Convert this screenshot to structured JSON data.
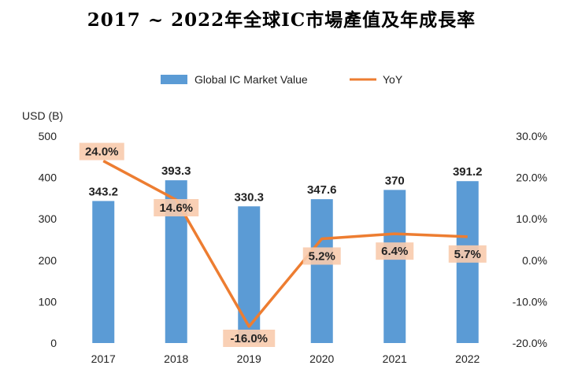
{
  "chart_data": {
    "type": "bar",
    "title": "2017 ~ 2022年全球IC市場產值及年成長率",
    "categories": [
      "2017",
      "2018",
      "2019",
      "2020",
      "2021",
      "2022"
    ],
    "series": [
      {
        "name": "Global IC Market Value",
        "type": "bar",
        "axis": "left",
        "values": [
          343.2,
          393.3,
          330.3,
          347.6,
          370,
          391.2
        ],
        "labels": [
          "343.2",
          "393.3",
          "330.3",
          "347.6",
          "370",
          "391.2"
        ],
        "color": "#5B9BD5"
      },
      {
        "name": "YoY",
        "type": "line",
        "axis": "right",
        "values": [
          24.0,
          14.6,
          -16.0,
          5.2,
          6.4,
          5.7
        ],
        "labels": [
          "24.0%",
          "14.6%",
          "-16.0%",
          "5.2%",
          "6.4%",
          "5.7%"
        ],
        "color": "#ED7D31",
        "label_bg": "#F8CBAD"
      }
    ],
    "left_axis": {
      "label": "USD (B)",
      "ylim": [
        0,
        500
      ],
      "ticks": [
        "0",
        "100",
        "200",
        "300",
        "400",
        "500"
      ]
    },
    "right_axis": {
      "ylim": [
        -20,
        30
      ],
      "ticks": [
        "-20.0%",
        "-10.0%",
        "0.0%",
        "10.0%",
        "20.0%",
        "30.0%"
      ]
    },
    "legend_position": "top",
    "grid": false
  }
}
